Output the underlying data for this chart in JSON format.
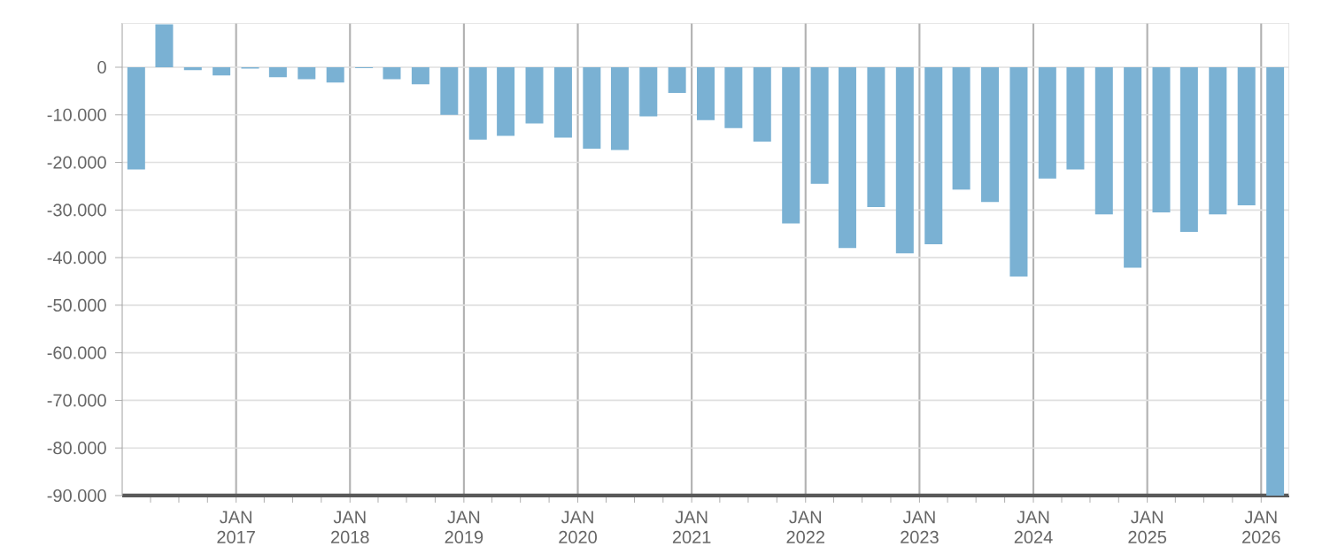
{
  "chart_data": {
    "type": "bar",
    "x": [
      "2016-02-15",
      "2016-05-15",
      "2016-08-15",
      "2016-11-15",
      "2017-02-15",
      "2017-05-15",
      "2017-08-15",
      "2017-11-15",
      "2018-02-15",
      "2018-05-15",
      "2018-08-15",
      "2018-11-15",
      "2019-02-15",
      "2019-05-15",
      "2019-08-15",
      "2019-11-15",
      "2020-02-15",
      "2020-05-15",
      "2020-08-15",
      "2020-11-15",
      "2021-02-15",
      "2021-05-15",
      "2021-08-15",
      "2021-11-15",
      "2022-02-15",
      "2022-05-15",
      "2022-08-15",
      "2022-11-15",
      "2023-02-15",
      "2023-05-15",
      "2023-08-15",
      "2023-11-15",
      "2024-02-15",
      "2024-05-15",
      "2024-08-15",
      "2024-11-15",
      "2025-02-15",
      "2025-05-15",
      "2025-08-15",
      "2025-11-15",
      "2026-02-15"
    ],
    "values": [
      -21500,
      9000,
      -600,
      -1700,
      -300,
      -2100,
      -2500,
      -3200,
      -200,
      -2500,
      -3600,
      -10000,
      -15200,
      -14400,
      -11800,
      -14800,
      -17100,
      -17400,
      -10300,
      -5400,
      -11100,
      -12800,
      -15600,
      -32800,
      -24500,
      -38000,
      -29400,
      -39100,
      -37200,
      -25700,
      -28300,
      -44000,
      -23400,
      -21500,
      -30900,
      -42100,
      -30500,
      -34600,
      -30900,
      -29000,
      -90000
    ],
    "color": "#7ab1d3",
    "xlim": [
      "2016-01-01",
      "2026-04-01"
    ],
    "xticks": [
      {
        "value": "2016-04-01",
        "label": null
      },
      {
        "value": "2016-07-01",
        "label": null
      },
      {
        "value": "2016-10-01",
        "label": null
      },
      {
        "value": "2017-01-01",
        "label": "JAN 2017"
      },
      {
        "value": "2017-04-01",
        "label": null
      },
      {
        "value": "2017-07-01",
        "label": null
      },
      {
        "value": "2017-10-01",
        "label": null
      },
      {
        "value": "2018-01-01",
        "label": "JAN 2018"
      },
      {
        "value": "2018-04-01",
        "label": null
      },
      {
        "value": "2018-07-01",
        "label": null
      },
      {
        "value": "2018-10-01",
        "label": null
      },
      {
        "value": "2019-01-01",
        "label": "JAN 2019"
      },
      {
        "value": "2019-04-01",
        "label": null
      },
      {
        "value": "2019-07-01",
        "label": null
      },
      {
        "value": "2019-10-01",
        "label": null
      },
      {
        "value": "2020-01-01",
        "label": "JAN 2020"
      },
      {
        "value": "2020-04-01",
        "label": null
      },
      {
        "value": "2020-07-01",
        "label": null
      },
      {
        "value": "2020-10-01",
        "label": null
      },
      {
        "value": "2021-01-01",
        "label": "JAN 2021"
      },
      {
        "value": "2021-04-01",
        "label": null
      },
      {
        "value": "2021-07-01",
        "label": null
      },
      {
        "value": "2021-10-01",
        "label": null
      },
      {
        "value": "2022-01-01",
        "label": "JAN 2022"
      },
      {
        "value": "2022-04-01",
        "label": null
      },
      {
        "value": "2022-07-01",
        "label": null
      },
      {
        "value": "2022-10-01",
        "label": null
      },
      {
        "value": "2023-01-01",
        "label": "JAN 2023"
      },
      {
        "value": "2023-04-01",
        "label": null
      },
      {
        "value": "2023-07-01",
        "label": null
      },
      {
        "value": "2023-10-01",
        "label": null
      },
      {
        "value": "2024-01-01",
        "label": "JAN 2024"
      },
      {
        "value": "2024-04-01",
        "label": null
      },
      {
        "value": "2024-07-01",
        "label": null
      },
      {
        "value": "2024-10-01",
        "label": null
      },
      {
        "value": "2025-01-01",
        "label": "JAN 2025"
      },
      {
        "value": "2025-04-01",
        "label": null
      },
      {
        "value": "2025-07-01",
        "label": null
      },
      {
        "value": "2025-10-01",
        "label": null
      },
      {
        "value": "2026-01-01",
        "label": "JAN 2026"
      }
    ],
    "ylim": [
      -90000,
      9300
    ],
    "yticks": [
      0,
      {
        "value": -10000,
        "label": "-10.000"
      },
      {
        "value": -20000,
        "label": "-20.000"
      },
      {
        "value": -30000,
        "label": "-30.000"
      },
      {
        "value": -40000,
        "label": "-40.000"
      },
      {
        "value": -50000,
        "label": "-50.000"
      },
      {
        "value": -60000,
        "label": "-60.000"
      },
      {
        "value": -70000,
        "label": "-70.000"
      },
      {
        "value": -80000,
        "label": "-80.000"
      },
      {
        "value": -90000,
        "label": "-90.000"
      }
    ],
    "grid": true
  }
}
